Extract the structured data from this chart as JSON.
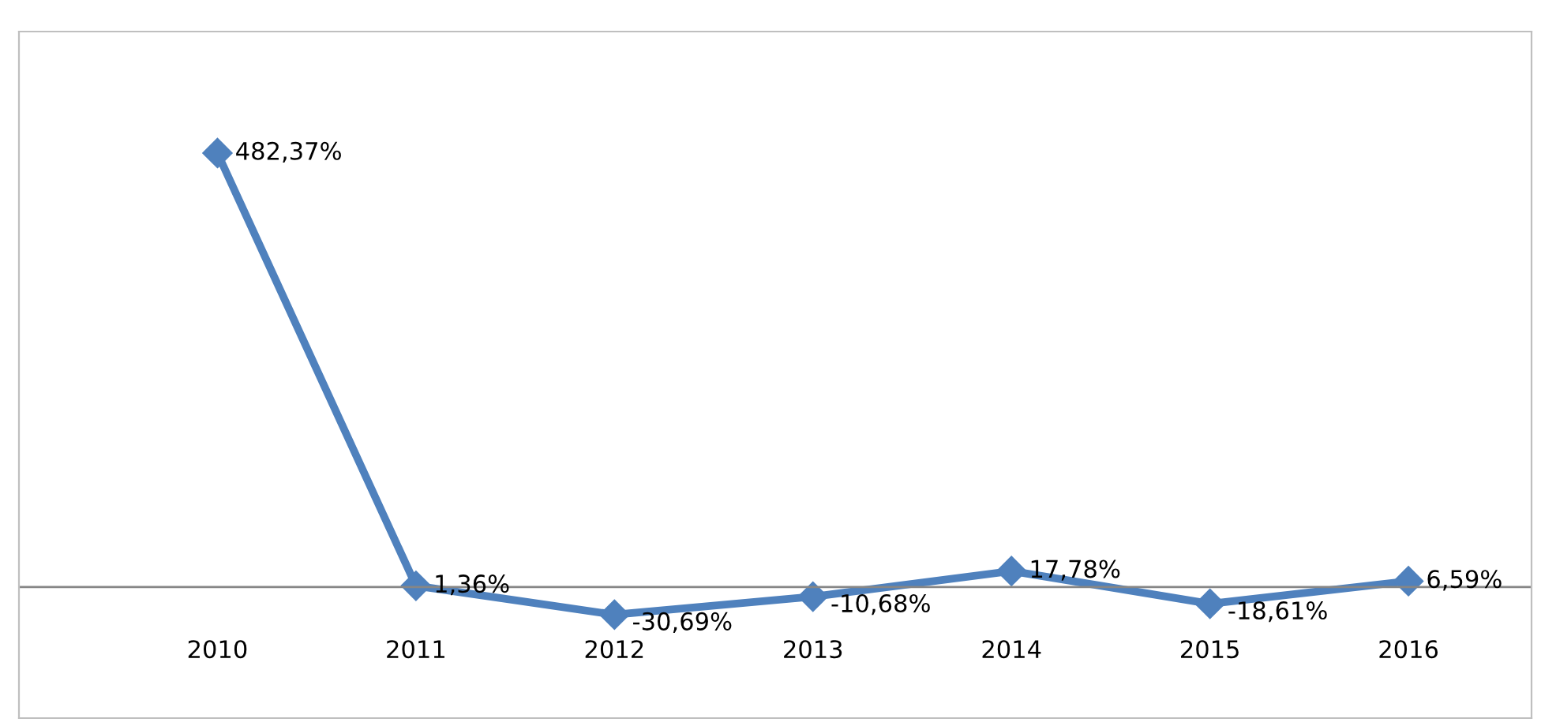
{
  "chart_data": {
    "type": "line",
    "categories": [
      "2010",
      "2011",
      "2012",
      "2013",
      "2014",
      "2015",
      "2016"
    ],
    "series": [
      {
        "color": "#4f81bd",
        "values": [
          482.37,
          1.36,
          -30.69,
          -10.68,
          17.78,
          -18.61,
          6.59
        ],
        "value_labels": [
          "482,37%",
          "1,36%",
          "-30,69%",
          "-10,68%",
          "17,78%",
          "-18,61%",
          "6,59%"
        ]
      }
    ],
    "marker": "diamond",
    "line_style": "solid",
    "legend": false
  }
}
